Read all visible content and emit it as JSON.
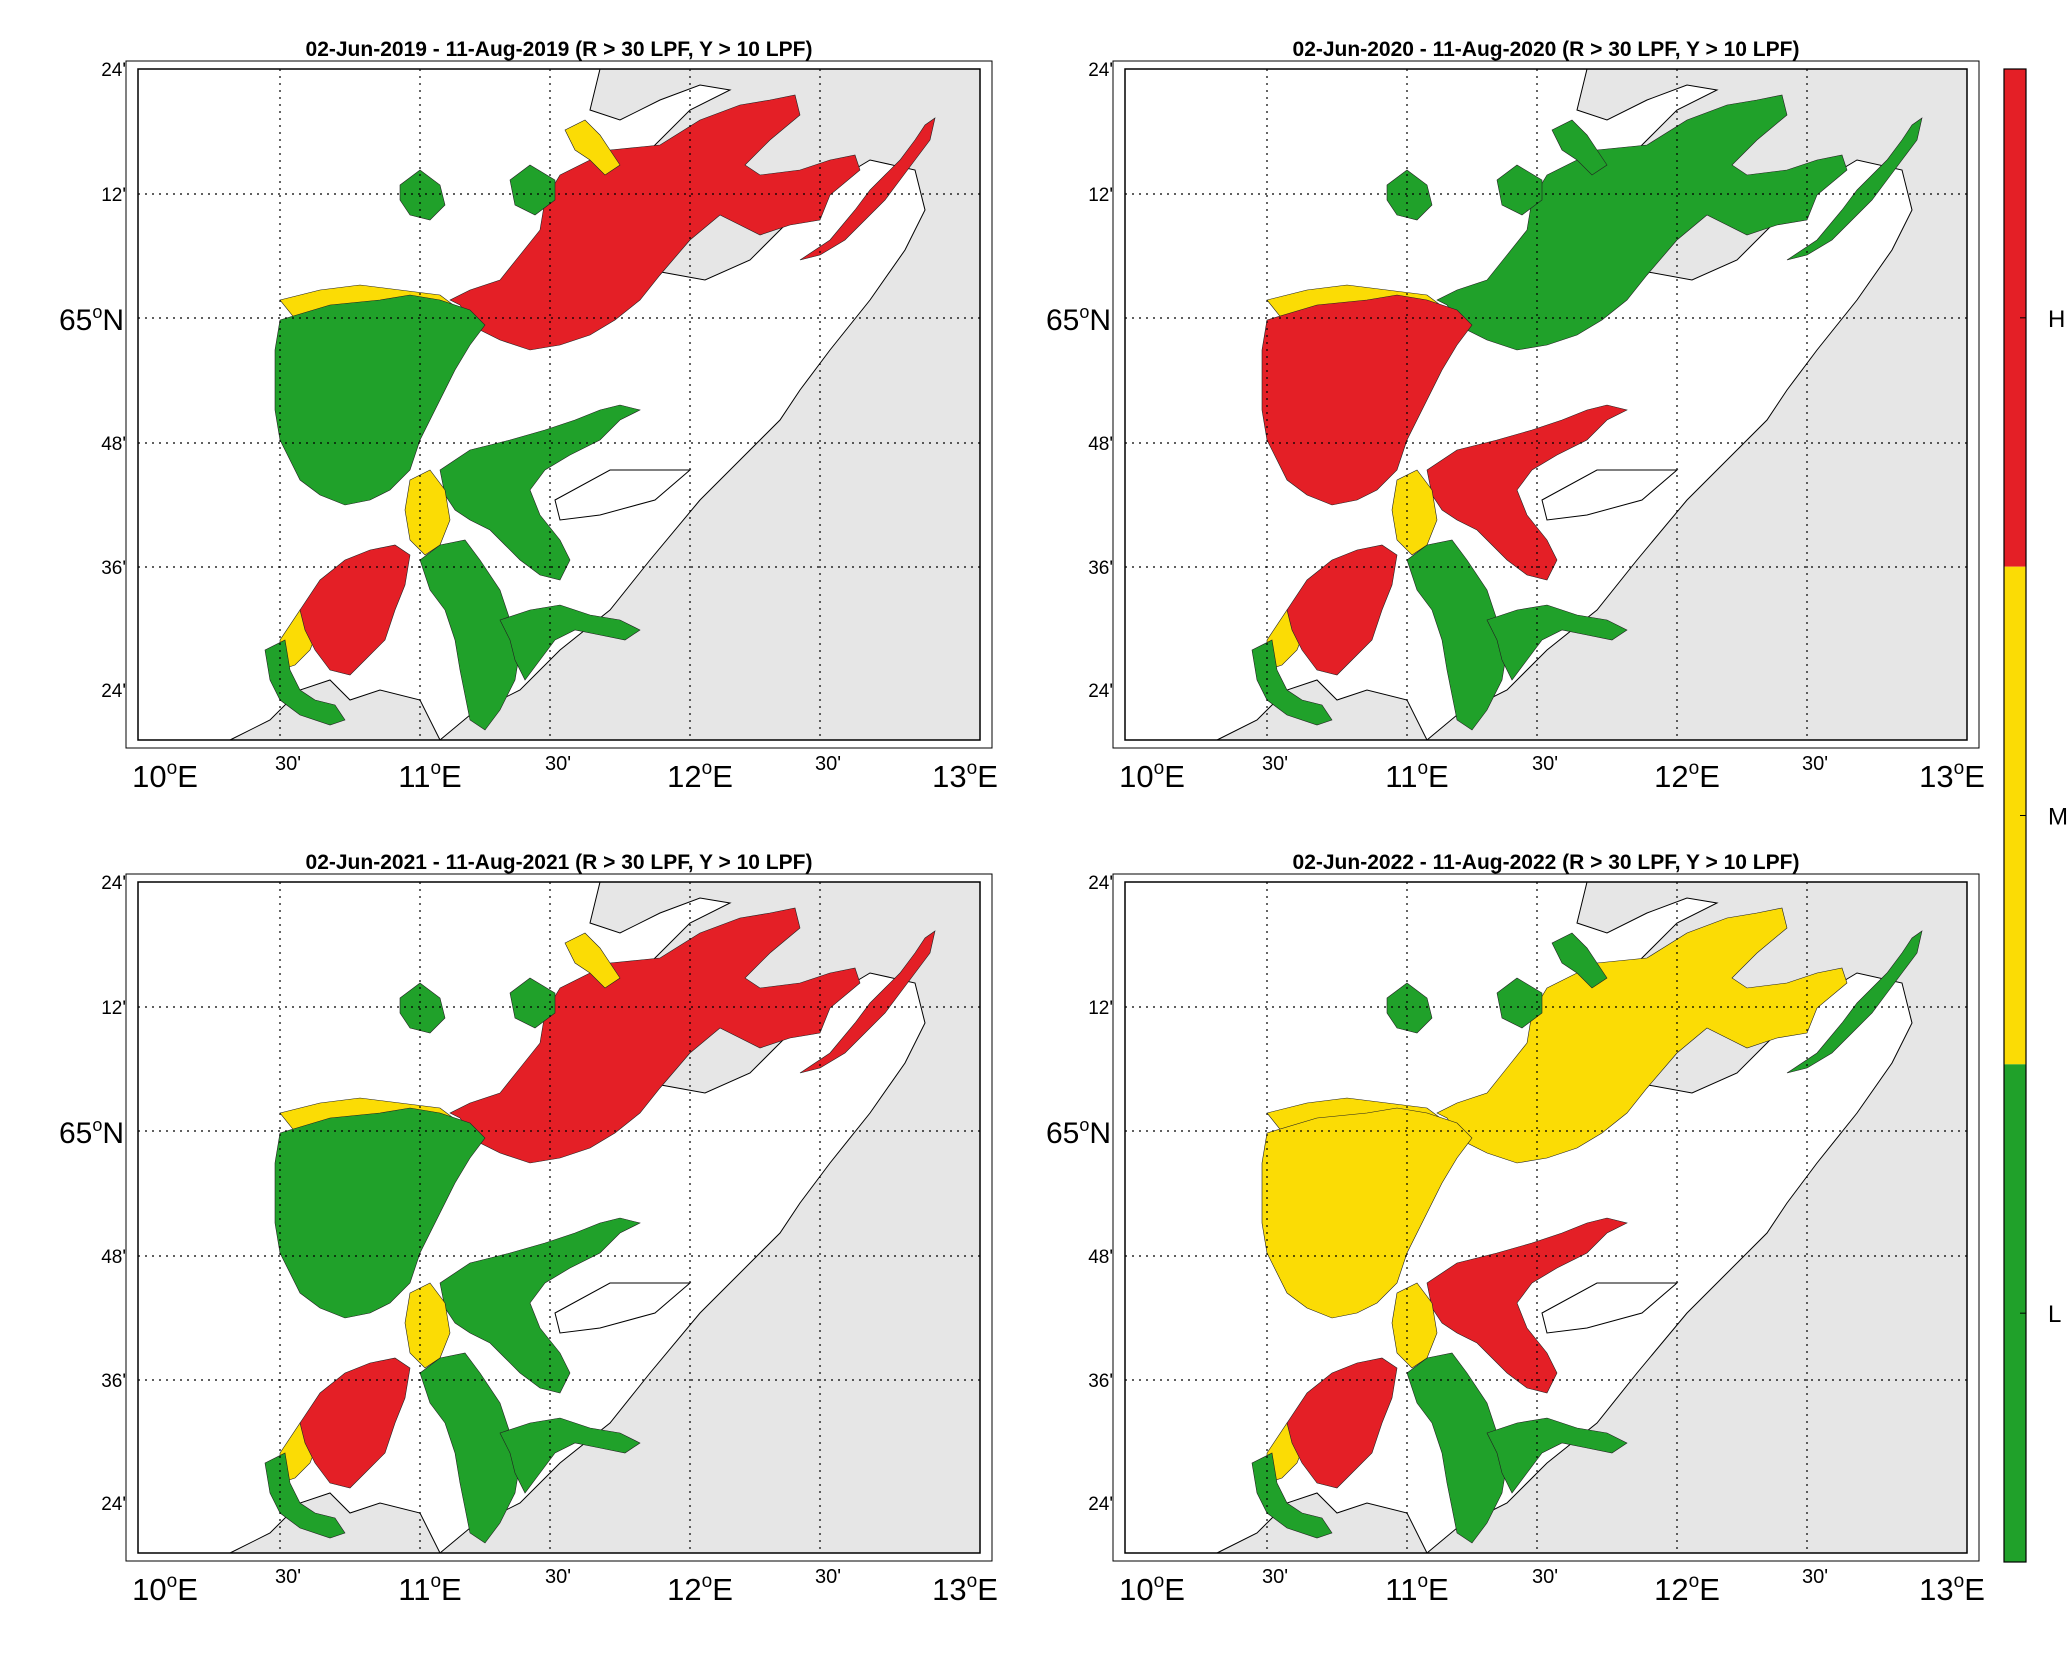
{
  "colors": {
    "land": "#e6e6e6",
    "sea": "#ffffff",
    "coast": "#000000",
    "high": "#e41f26",
    "medium": "#fbdc05",
    "low": "#20a12a",
    "grid": "#000000"
  },
  "panels": [
    {
      "title": "02-Jun-2019  - 11-Aug-2019  (R > 30 LPF, Y > 10 LPF)",
      "year": 2019,
      "north_fjord": "high",
      "mid_islands": "low",
      "mid_east_fjord": "low",
      "south_west": "high",
      "south_east": "low"
    },
    {
      "title": "02-Jun-2020  - 11-Aug-2020  (R > 30 LPF, Y > 10 LPF)",
      "year": 2020,
      "north_fjord": "low",
      "mid_islands": "high",
      "mid_east_fjord": "high",
      "south_west": "high",
      "south_east": "low"
    },
    {
      "title": "02-Jun-2021  - 11-Aug-2021  (R > 30 LPF, Y > 10 LPF)",
      "year": 2021,
      "north_fjord": "high",
      "mid_islands": "low",
      "mid_east_fjord": "low",
      "south_west": "high",
      "south_east": "low"
    },
    {
      "title": "02-Jun-2022  - 11-Aug-2022  (R > 30 LPF, Y > 10 LPF)",
      "year": 2022,
      "north_fjord": "medium",
      "mid_islands": "medium",
      "mid_east_fjord": "high",
      "south_west": "high",
      "south_east": "low"
    }
  ],
  "lat_labels": [
    "24'",
    "12'",
    "65°N",
    "48'",
    "36'",
    "24'"
  ],
  "lat_label_parts": {
    "deg": "65",
    "sup": "o",
    "suffix": "N"
  },
  "lon_labels": [
    {
      "deg": "10",
      "suffix": "E"
    },
    {
      "deg": "11",
      "suffix": "E"
    },
    {
      "deg": "12",
      "suffix": "E"
    },
    {
      "deg": "13",
      "suffix": "E"
    }
  ],
  "lon_minor_label": "30'",
  "colorbar": {
    "labels": [
      "H",
      "M",
      "L"
    ],
    "segments": [
      "high",
      "medium",
      "low"
    ]
  }
}
